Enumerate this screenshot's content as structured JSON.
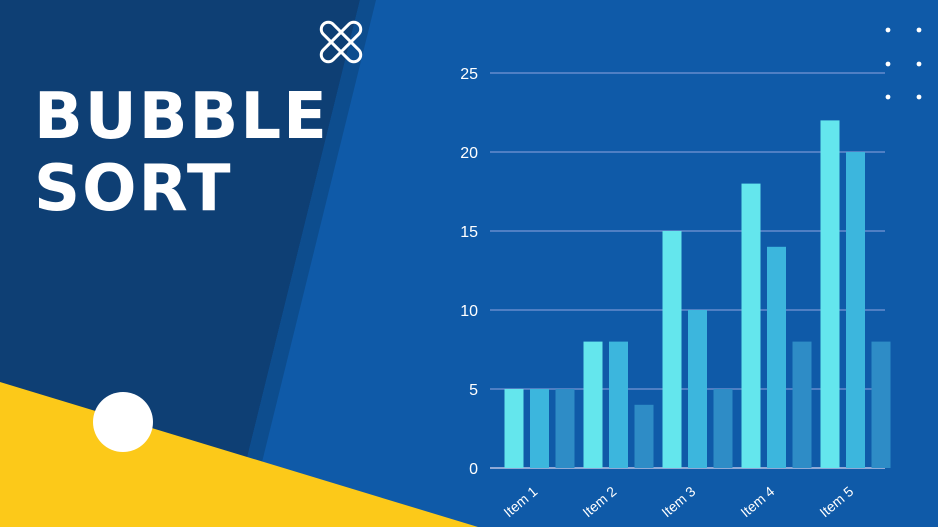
{
  "title": {
    "line1": "BUBBLE",
    "line2": "SORT"
  },
  "colors": {
    "background": "#0f5aa8",
    "dark_panel": "#0e3f74",
    "stripe": "#0d4d8e",
    "yellow": "#fcc919",
    "series": [
      "#64e6ed",
      "#3cb6dd",
      "#2e8cc6"
    ]
  },
  "chart_data": {
    "type": "bar",
    "categories": [
      "Item 1",
      "Item 2",
      "Item 3",
      "Item 4",
      "Item 5"
    ],
    "series": [
      {
        "values": [
          5,
          8,
          15,
          18,
          22
        ]
      },
      {
        "values": [
          5,
          8,
          10,
          14,
          20
        ]
      },
      {
        "values": [
          5,
          4,
          5,
          8,
          8
        ]
      }
    ],
    "ylim": [
      0,
      25
    ],
    "yticks": [
      0,
      5,
      10,
      15,
      20,
      25
    ],
    "grid": true,
    "xlabel": "",
    "ylabel": "",
    "legend": "none"
  }
}
